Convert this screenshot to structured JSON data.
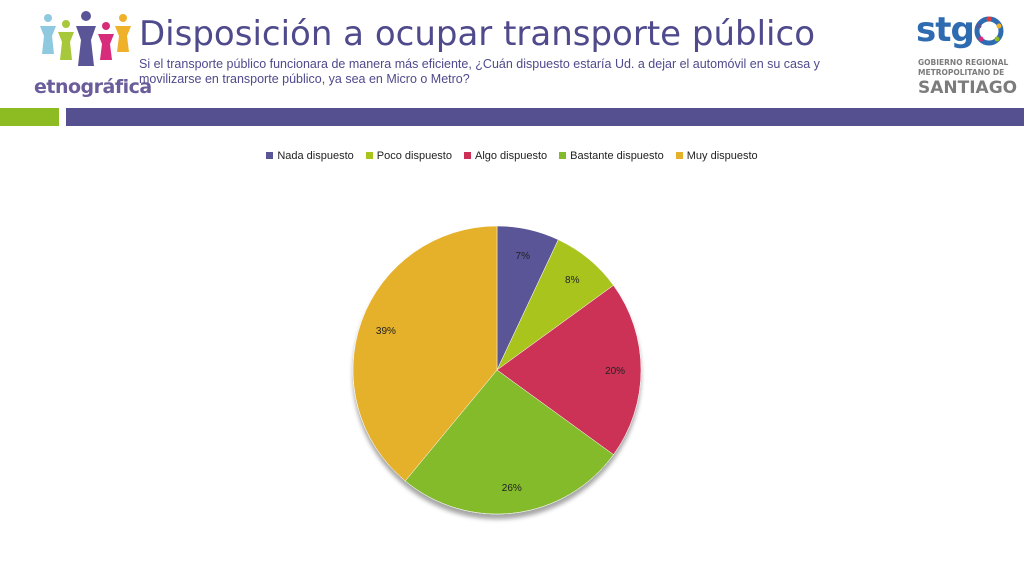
{
  "header": {
    "title": "Disposición a ocupar transporte público",
    "subtitle": "Si el transporte público funcionara de manera más eficiente, ¿Cuán dispuesto estaría Ud. a dejar el automóvil en su casa y movilizarse en transporte público, ya sea en Micro o Metro?"
  },
  "logos": {
    "left_text": "etnográfica",
    "right_main": "stg",
    "right_line1": "GOBIERNO REGIONAL",
    "right_line2": "METROPOLITANO DE",
    "right_line3": "SANTIAGO"
  },
  "colors": {
    "band_green": "#8dbb22",
    "band_purple": "#55508f",
    "title": "#4f4a8c"
  },
  "chart_data": {
    "type": "pie",
    "title": "",
    "legend_position": "top",
    "categories": [
      "Nada dispuesto",
      "Poco dispuesto",
      "Algo dispuesto",
      "Bastante dispuesto",
      "Muy dispuesto"
    ],
    "values": [
      7,
      8,
      20,
      26,
      39
    ],
    "labels": [
      "7%",
      "8%",
      "20%",
      "26%",
      "39%"
    ],
    "colors": [
      "#5a5597",
      "#a9c41a",
      "#cc3057",
      "#84bb2a",
      "#e5b02a"
    ]
  }
}
